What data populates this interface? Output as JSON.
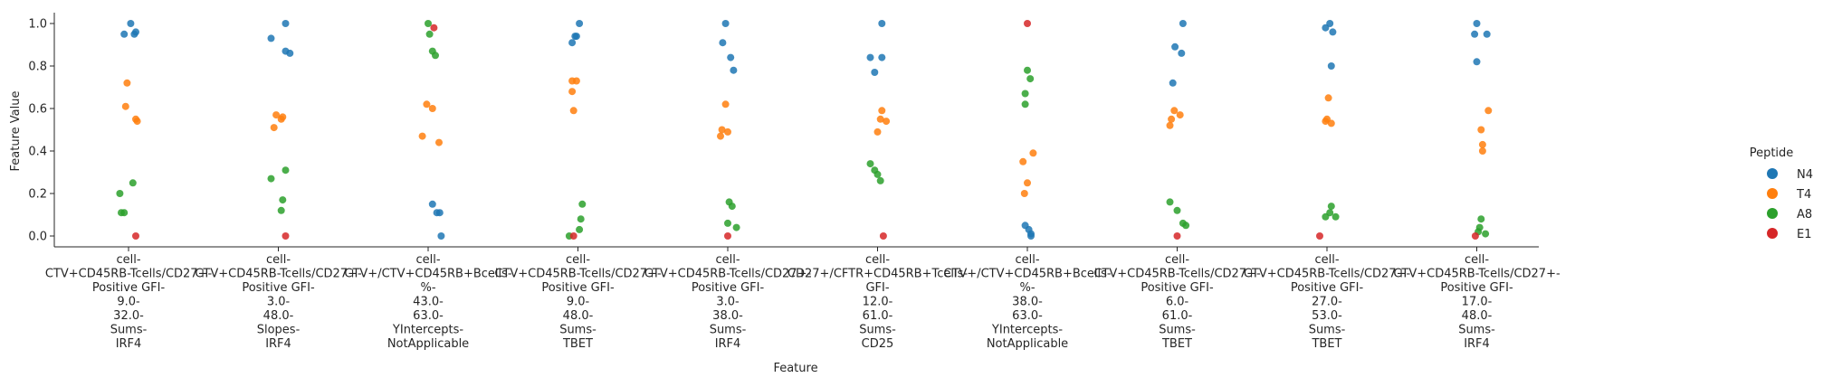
{
  "chart_data": {
    "type": "scatter",
    "xlabel": "Feature",
    "ylabel": "Feature Value",
    "ylim": [
      0.0,
      1.0
    ],
    "yticks": [
      "0.0",
      "0.2",
      "0.4",
      "0.6",
      "0.8",
      "1.0"
    ],
    "grid": false,
    "legend_position": "right",
    "legend_title": "Peptide",
    "categories": [
      "cell-\nCTV+CD45RB-Tcells/CD27+-\nPositive GFI-\n9.0-\n32.0-\nSums-\nIRF4",
      "cell-\nCTV+CD45RB-Tcells/CD27+-\nPositive GFI-\n3.0-\n48.0-\nSlopes-\nIRF4",
      "cell-\nCTV+/CTV+CD45RB+Bcells-\n%-\n43.0-\n63.0-\nYIntercepts-\nNotApplicable",
      "cell-\nCTV+CD45RB-Tcells/CD27+-\nPositive GFI-\n9.0-\n48.0-\nSums-\nTBET",
      "cell-\nCTV+CD45RB-Tcells/CD27+-\nPositive GFI-\n3.0-\n38.0-\nSums-\nIRF4",
      "cell-\nCD27+/CFTR+CD45RB+Tcells-\nGFI-\n12.0-\n61.0-\nSums-\nCD25",
      "cell-\nCTV+/CTV+CD45RB+Bcells-\n%-\n38.0-\n63.0-\nYIntercepts-\nNotApplicable",
      "cell-\nCTV+CD45RB-Tcells/CD27+-\nPositive GFI-\n6.0-\n61.0-\nSums-\nTBET",
      "cell-\nCTV+CD45RB-Tcells/CD27+-\nPositive GFI-\n27.0-\n53.0-\nSums-\nTBET",
      "cell-\nCTV+CD45RB-Tcells/CD27+-\nPositive GFI-\n17.0-\n48.0-\nSums-\nIRF4"
    ],
    "series": [
      {
        "name": "N4",
        "color": "#1f77b4",
        "values": [
          [
            0.95,
            1.0,
            0.95,
            0.96
          ],
          [
            0.93,
            1.0,
            0.87,
            0.86
          ],
          [
            0.15,
            0.11,
            0.11,
            0.0
          ],
          [
            0.91,
            0.94,
            0.94,
            1.0
          ],
          [
            0.91,
            1.0,
            0.84,
            0.78
          ],
          [
            0.84,
            0.77,
            0.84,
            1.0
          ],
          [
            0.05,
            0.03,
            0.01,
            0.0
          ],
          [
            0.72,
            0.89,
            0.86,
            1.0
          ],
          [
            0.98,
            1.0,
            0.8,
            0.96
          ],
          [
            0.95,
            1.0,
            0.82,
            0.95
          ]
        ],
        "offsets": [
          [
            -0.06,
            0.03,
            0.08,
            0.1
          ],
          [
            -0.1,
            0.1,
            0.1,
            0.16
          ],
          [
            0.06,
            0.12,
            0.16,
            0.18
          ],
          [
            -0.08,
            -0.04,
            -0.02,
            0.02
          ],
          [
            -0.07,
            -0.03,
            0.04,
            0.08
          ],
          [
            -0.1,
            -0.04,
            0.06,
            0.06
          ],
          [
            -0.03,
            0.02,
            0.05,
            0.05
          ],
          [
            -0.06,
            -0.03,
            0.06,
            0.08
          ],
          [
            -0.02,
            0.04,
            0.06,
            0.08
          ],
          [
            -0.03,
            0.0,
            0.0,
            0.14
          ]
        ]
      },
      {
        "name": "T4",
        "color": "#ff7f0e",
        "values": [
          [
            0.72,
            0.61,
            0.55,
            0.54
          ],
          [
            0.51,
            0.57,
            0.55,
            0.56
          ],
          [
            0.62,
            0.6,
            0.47,
            0.44
          ],
          [
            0.68,
            0.73,
            0.73,
            0.59
          ],
          [
            0.47,
            0.5,
            0.49,
            0.62
          ],
          [
            0.49,
            0.59,
            0.55,
            0.54
          ],
          [
            0.35,
            0.25,
            0.2,
            0.39
          ],
          [
            0.52,
            0.55,
            0.57,
            0.59
          ],
          [
            0.54,
            0.55,
            0.53,
            0.65
          ],
          [
            0.5,
            0.43,
            0.4,
            0.59
          ]
        ],
        "offsets": [
          [
            -0.02,
            -0.04,
            0.1,
            0.12
          ],
          [
            -0.06,
            -0.03,
            0.04,
            0.06
          ],
          [
            -0.02,
            0.06,
            -0.08,
            0.15
          ],
          [
            -0.08,
            -0.08,
            -0.02,
            -0.06
          ],
          [
            -0.1,
            -0.08,
            0.0,
            -0.03
          ],
          [
            0.0,
            0.06,
            0.04,
            0.12
          ],
          [
            -0.06,
            0.0,
            -0.04,
            0.08
          ],
          [
            -0.1,
            -0.08,
            0.04,
            -0.04
          ],
          [
            -0.02,
            0.0,
            0.06,
            0.02
          ],
          [
            0.06,
            0.08,
            0.08,
            0.16
          ]
        ]
      },
      {
        "name": "A8",
        "color": "#2ca02c",
        "values": [
          [
            0.2,
            0.11,
            0.11,
            0.25
          ],
          [
            0.27,
            0.12,
            0.17,
            0.31
          ],
          [
            1.0,
            0.95,
            0.87,
            0.85
          ],
          [
            0.0,
            0.03,
            0.08,
            0.15
          ],
          [
            0.06,
            0.16,
            0.14,
            0.04
          ],
          [
            0.34,
            0.31,
            0.29,
            0.26
          ],
          [
            0.62,
            0.67,
            0.78,
            0.74
          ],
          [
            0.16,
            0.12,
            0.06,
            0.05
          ],
          [
            0.09,
            0.11,
            0.14,
            0.09
          ],
          [
            0.02,
            0.04,
            0.08,
            0.01
          ]
        ],
        "offsets": [
          [
            -0.12,
            -0.1,
            -0.06,
            0.06
          ],
          [
            -0.1,
            0.04,
            0.06,
            0.1
          ],
          [
            0.0,
            0.02,
            0.06,
            0.1
          ],
          [
            -0.12,
            0.02,
            0.04,
            0.06
          ],
          [
            0.0,
            0.02,
            0.06,
            0.12
          ],
          [
            -0.1,
            -0.04,
            0.0,
            0.04
          ],
          [
            -0.03,
            -0.03,
            0.0,
            0.04
          ],
          [
            -0.1,
            0.0,
            0.08,
            0.12
          ],
          [
            -0.02,
            0.04,
            0.06,
            0.12
          ],
          [
            0.02,
            0.04,
            0.06,
            0.12
          ]
        ]
      },
      {
        "name": "E1",
        "color": "#d62728",
        "values": [
          [
            0.0
          ],
          [
            0.0
          ],
          [
            0.98
          ],
          [
            0.0
          ],
          [
            0.0
          ],
          [
            0.0
          ],
          [
            1.0
          ],
          [
            0.0
          ],
          [
            0.0
          ],
          [
            0.0
          ]
        ],
        "offsets": [
          [
            0.1
          ],
          [
            0.1
          ],
          [
            0.08
          ],
          [
            -0.06
          ],
          [
            0.0
          ],
          [
            0.08
          ],
          [
            0.0
          ],
          [
            0.0
          ],
          [
            -0.1
          ],
          [
            -0.02
          ]
        ]
      }
    ]
  }
}
